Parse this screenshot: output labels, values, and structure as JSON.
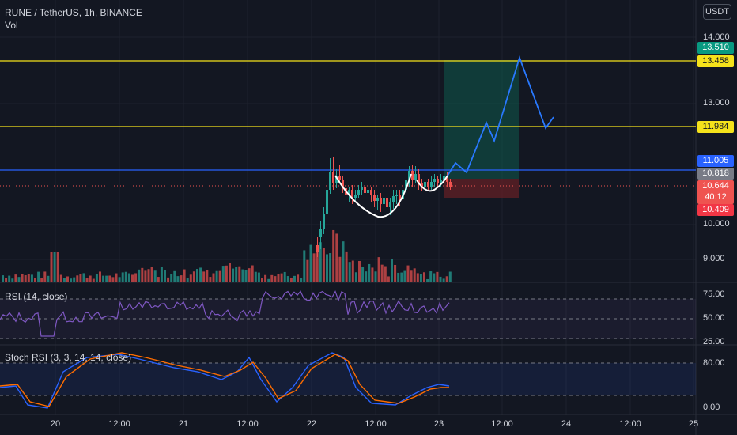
{
  "header": {
    "symbol_title": "RUNE / TetherUS, 1h, BINANCE",
    "volume_label": "Vol",
    "currency_button": "USDT"
  },
  "indicators": {
    "rsi_label": "RSI (14, close)",
    "stoch_label": "Stoch RSI (3, 3, 14, 14, close)"
  },
  "price_axis": {
    "ticks": [
      "14.000",
      "13.000",
      "10.000",
      "9.000"
    ],
    "tags": {
      "target_upper": "13.510",
      "yellow_top": "13.458",
      "yellow_mid": "11.984",
      "blue_line": "11.005",
      "current_gray": "10.818",
      "last_price": "10.644",
      "countdown": "40:12",
      "stop": "10.409"
    }
  },
  "rsi_axis": {
    "ticks": [
      "75.00",
      "50.00",
      "25.00"
    ]
  },
  "stoch_axis": {
    "ticks": [
      "80.00",
      "0.00"
    ]
  },
  "time_axis": {
    "labels": [
      "20",
      "12:00",
      "21",
      "12:00",
      "22",
      "12:00",
      "23",
      "12:00",
      "24",
      "12:00",
      "25"
    ]
  },
  "colors": {
    "background": "#131722",
    "up": "#26a69a",
    "down": "#ef5350",
    "yellow_line": "#f5e21b",
    "blue_line": "#2962ff",
    "projection": "#2979ff",
    "rsi": "#7e57c2",
    "stoch_k": "#2962ff",
    "stoch_d": "#ff6d00"
  }
}
